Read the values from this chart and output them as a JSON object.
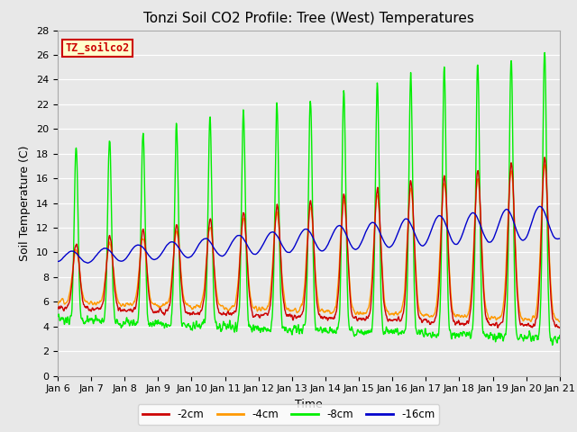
{
  "title": "Tonzi Soil CO2 Profile: Tree (West) Temperatures",
  "xlabel": "Time",
  "ylabel": "Soil Temperature (C)",
  "ylim": [
    0,
    28
  ],
  "x_tick_labels": [
    "Jan 6",
    "Jan 7",
    "Jan 8",
    "Jan 9",
    "Jan 10",
    "Jan 11",
    "Jan 12",
    "Jan 13",
    "Jan 14",
    "Jan 15",
    "Jan 16",
    "Jan 17",
    "Jan 18",
    "Jan 19",
    "Jan 20",
    "Jan 21"
  ],
  "colors": {
    "2cm": "#cc0000",
    "4cm": "#ff9900",
    "8cm": "#00ee00",
    "16cm": "#0000cc"
  },
  "legend_label": "TZ_soilco2",
  "legend_bg": "#ffffcc",
  "legend_border": "#cc0000",
  "bg_color": "#e8e8e8",
  "title_fontsize": 11,
  "axis_fontsize": 9,
  "tick_fontsize": 8,
  "line_width": 1.0
}
